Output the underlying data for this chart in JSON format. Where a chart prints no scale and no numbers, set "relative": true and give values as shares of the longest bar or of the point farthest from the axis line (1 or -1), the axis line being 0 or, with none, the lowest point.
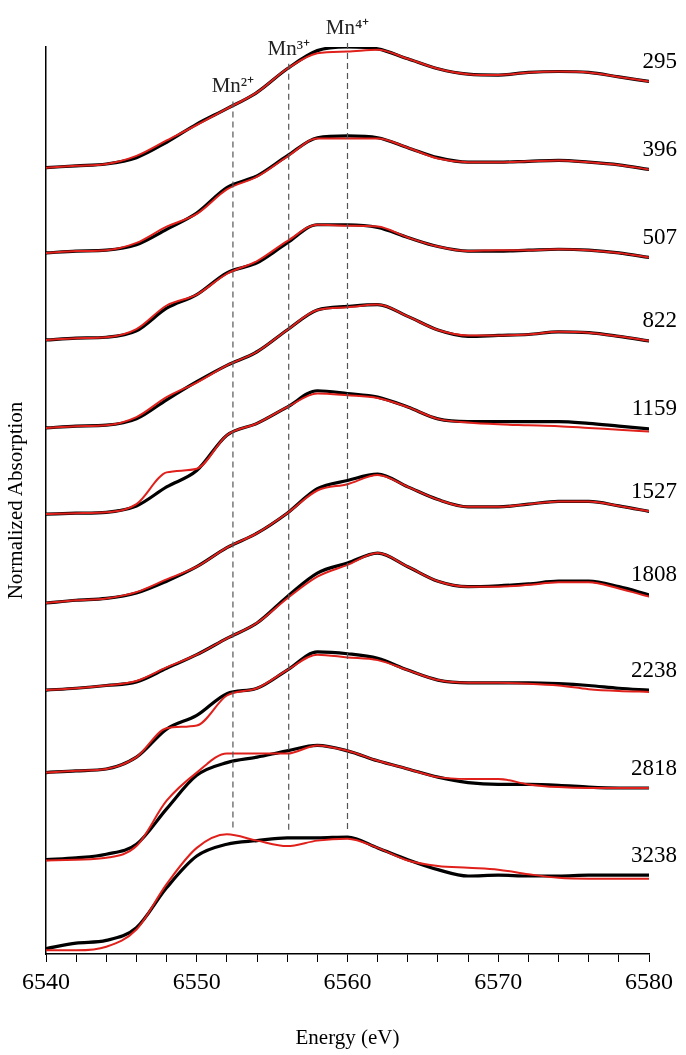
{
  "chart_data": {
    "type": "line",
    "relative": true,
    "xlabel": "Energy (eV)",
    "ylabel": "Normalized Absorption",
    "legend": false,
    "grid": false,
    "marker": "none",
    "line_style": "solid",
    "x": [
      6540,
      6542,
      6544,
      6546,
      6548,
      6550,
      6552,
      6554,
      6556,
      6558,
      6560,
      6562,
      6564,
      6566,
      6568,
      6570,
      6572,
      6574,
      6576,
      6578,
      6580
    ],
    "xlim": [
      6540,
      6580
    ],
    "xticks": [
      6540,
      {
        "value": 6542,
        "label": null
      },
      {
        "value": 6544,
        "label": null
      },
      {
        "value": 6546,
        "label": null
      },
      {
        "value": 6548,
        "label": null
      },
      6550,
      {
        "value": 6552,
        "label": null
      },
      {
        "value": 6554,
        "label": null
      },
      {
        "value": 6556,
        "label": null
      },
      {
        "value": 6558,
        "label": null
      },
      6560,
      {
        "value": 6562,
        "label": null
      },
      {
        "value": 6564,
        "label": null
      },
      {
        "value": 6566,
        "label": null
      },
      {
        "value": 6568,
        "label": null
      },
      6570,
      {
        "value": 6572,
        "label": null
      },
      {
        "value": 6574,
        "label": null
      },
      {
        "value": 6576,
        "label": null
      },
      {
        "value": 6578,
        "label": null
      },
      6580
    ],
    "series": [
      {
        "color": "#000000",
        "values": [
          0.867,
          0.869,
          0.871,
          0.878,
          0.895,
          0.915,
          0.932,
          0.95,
          0.976,
          0.996,
          1.0,
          0.998,
          0.987,
          0.976,
          0.97,
          0.969,
          0.972,
          0.973,
          0.972,
          0.967,
          0.962
        ]
      },
      {
        "color": "#e0201b",
        "values": [
          0.867,
          0.869,
          0.871,
          0.88,
          0.897,
          0.914,
          0.932,
          0.95,
          0.976,
          0.993,
          0.995,
          0.997,
          0.987,
          0.976,
          0.97,
          0.969,
          0.972,
          0.973,
          0.972,
          0.967,
          0.962
        ]
      },
      {
        "color": "#000000",
        "values": [
          0.773,
          0.775,
          0.776,
          0.782,
          0.799,
          0.817,
          0.845,
          0.858,
          0.88,
          0.9,
          0.902,
          0.9,
          0.889,
          0.878,
          0.873,
          0.873,
          0.874,
          0.875,
          0.873,
          0.87,
          0.865
        ]
      },
      {
        "color": "#e0201b",
        "values": [
          0.773,
          0.775,
          0.776,
          0.784,
          0.802,
          0.816,
          0.843,
          0.857,
          0.879,
          0.899,
          0.899,
          0.899,
          0.889,
          0.877,
          0.873,
          0.873,
          0.874,
          0.875,
          0.873,
          0.87,
          0.865
        ]
      },
      {
        "color": "#000000",
        "values": [
          0.677,
          0.679,
          0.68,
          0.687,
          0.712,
          0.727,
          0.751,
          0.762,
          0.784,
          0.804,
          0.804,
          0.801,
          0.79,
          0.78,
          0.775,
          0.775,
          0.776,
          0.777,
          0.776,
          0.773,
          0.768
        ]
      },
      {
        "color": "#e0201b",
        "values": [
          0.677,
          0.679,
          0.68,
          0.689,
          0.715,
          0.727,
          0.75,
          0.764,
          0.786,
          0.804,
          0.803,
          0.802,
          0.79,
          0.78,
          0.775,
          0.776,
          0.776,
          0.777,
          0.776,
          0.773,
          0.768
        ]
      },
      {
        "color": "#000000",
        "values": [
          0.58,
          0.582,
          0.583,
          0.59,
          0.611,
          0.631,
          0.649,
          0.664,
          0.688,
          0.71,
          0.714,
          0.716,
          0.703,
          0.688,
          0.681,
          0.682,
          0.683,
          0.686,
          0.685,
          0.681,
          0.676
        ]
      },
      {
        "color": "#e0201b",
        "values": [
          0.58,
          0.582,
          0.583,
          0.592,
          0.614,
          0.63,
          0.649,
          0.664,
          0.688,
          0.71,
          0.713,
          0.716,
          0.703,
          0.688,
          0.682,
          0.682,
          0.683,
          0.686,
          0.685,
          0.681,
          0.676
        ]
      },
      {
        "color": "#000000",
        "values": [
          0.485,
          0.486,
          0.487,
          0.494,
          0.515,
          0.533,
          0.572,
          0.585,
          0.603,
          0.621,
          0.618,
          0.614,
          0.603,
          0.59,
          0.587,
          0.587,
          0.587,
          0.587,
          0.585,
          0.582,
          0.579
        ]
      },
      {
        "color": "#e0201b",
        "values": [
          0.485,
          0.486,
          0.487,
          0.496,
          0.531,
          0.535,
          0.572,
          0.585,
          0.603,
          0.618,
          0.616,
          0.613,
          0.603,
          0.59,
          0.586,
          0.584,
          0.583,
          0.582,
          0.58,
          0.578,
          0.576
        ]
      },
      {
        "color": "#000000",
        "values": [
          0.387,
          0.39,
          0.392,
          0.398,
          0.411,
          0.427,
          0.448,
          0.464,
          0.486,
          0.513,
          0.522,
          0.529,
          0.515,
          0.501,
          0.493,
          0.493,
          0.496,
          0.499,
          0.499,
          0.494,
          0.488
        ]
      },
      {
        "color": "#e0201b",
        "values": [
          0.387,
          0.39,
          0.392,
          0.399,
          0.413,
          0.427,
          0.448,
          0.464,
          0.486,
          0.511,
          0.518,
          0.528,
          0.515,
          0.501,
          0.493,
          0.493,
          0.496,
          0.499,
          0.499,
          0.494,
          0.488
        ]
      },
      {
        "color": "#000000",
        "values": [
          0.291,
          0.293,
          0.296,
          0.3,
          0.315,
          0.33,
          0.348,
          0.365,
          0.394,
          0.42,
          0.431,
          0.442,
          0.427,
          0.411,
          0.405,
          0.406,
          0.408,
          0.411,
          0.411,
          0.405,
          0.396
        ]
      },
      {
        "color": "#e0201b",
        "values": [
          0.291,
          0.293,
          0.296,
          0.301,
          0.316,
          0.33,
          0.348,
          0.365,
          0.392,
          0.416,
          0.429,
          0.442,
          0.427,
          0.411,
          0.405,
          0.405,
          0.407,
          0.41,
          0.41,
          0.403,
          0.394
        ]
      },
      {
        "color": "#000000",
        "values": [
          0.2,
          0.202,
          0.204,
          0.217,
          0.248,
          0.263,
          0.287,
          0.293,
          0.313,
          0.333,
          0.331,
          0.326,
          0.313,
          0.302,
          0.299,
          0.299,
          0.299,
          0.298,
          0.296,
          0.293,
          0.291
        ]
      },
      {
        "color": "#e0201b",
        "values": [
          0.2,
          0.202,
          0.204,
          0.217,
          0.249,
          0.252,
          0.285,
          0.293,
          0.313,
          0.33,
          0.327,
          0.324,
          0.313,
          0.302,
          0.299,
          0.299,
          0.298,
          0.296,
          0.292,
          0.29,
          0.289
        ]
      },
      {
        "color": "#000000",
        "values": [
          0.104,
          0.106,
          0.11,
          0.121,
          0.16,
          0.197,
          0.211,
          0.217,
          0.224,
          0.23,
          0.224,
          0.213,
          0.204,
          0.195,
          0.189,
          0.187,
          0.187,
          0.186,
          0.184,
          0.183,
          0.183
        ]
      },
      {
        "color": "#e0201b",
        "values": [
          0.103,
          0.104,
          0.106,
          0.119,
          0.169,
          0.2,
          0.221,
          0.221,
          0.221,
          0.23,
          0.224,
          0.213,
          0.204,
          0.195,
          0.193,
          0.193,
          0.187,
          0.184,
          0.183,
          0.183,
          0.183
        ]
      },
      {
        "color": "#000000",
        "values": [
          0.006,
          0.012,
          0.015,
          0.029,
          0.073,
          0.108,
          0.121,
          0.125,
          0.128,
          0.128,
          0.129,
          0.117,
          0.104,
          0.093,
          0.086,
          0.087,
          0.086,
          0.086,
          0.087,
          0.087,
          0.087
        ]
      },
      {
        "color": "#e0201b",
        "values": [
          0.004,
          0.004,
          0.008,
          0.027,
          0.077,
          0.117,
          0.132,
          0.125,
          0.119,
          0.125,
          0.127,
          0.117,
          0.103,
          0.097,
          0.095,
          0.093,
          0.088,
          0.084,
          0.083,
          0.083,
          0.083
        ]
      }
    ],
    "ref_lines": [
      {
        "axis": "x",
        "value": 6552.4,
        "label": "Mn²⁺",
        "color": "#555555",
        "line_style": "dashed"
      },
      {
        "axis": "x",
        "value": 6556.1,
        "label": "Mn³⁺",
        "color": "#555555",
        "line_style": "dashed"
      },
      {
        "axis": "x",
        "value": 6560,
        "label": "Mn⁴⁺",
        "color": "#555555",
        "line_style": "dashed"
      }
    ],
    "annotations": [
      "295",
      "396",
      "507",
      "822",
      "1159",
      "1527",
      "1808",
      "2238",
      "2818",
      "3238"
    ]
  }
}
